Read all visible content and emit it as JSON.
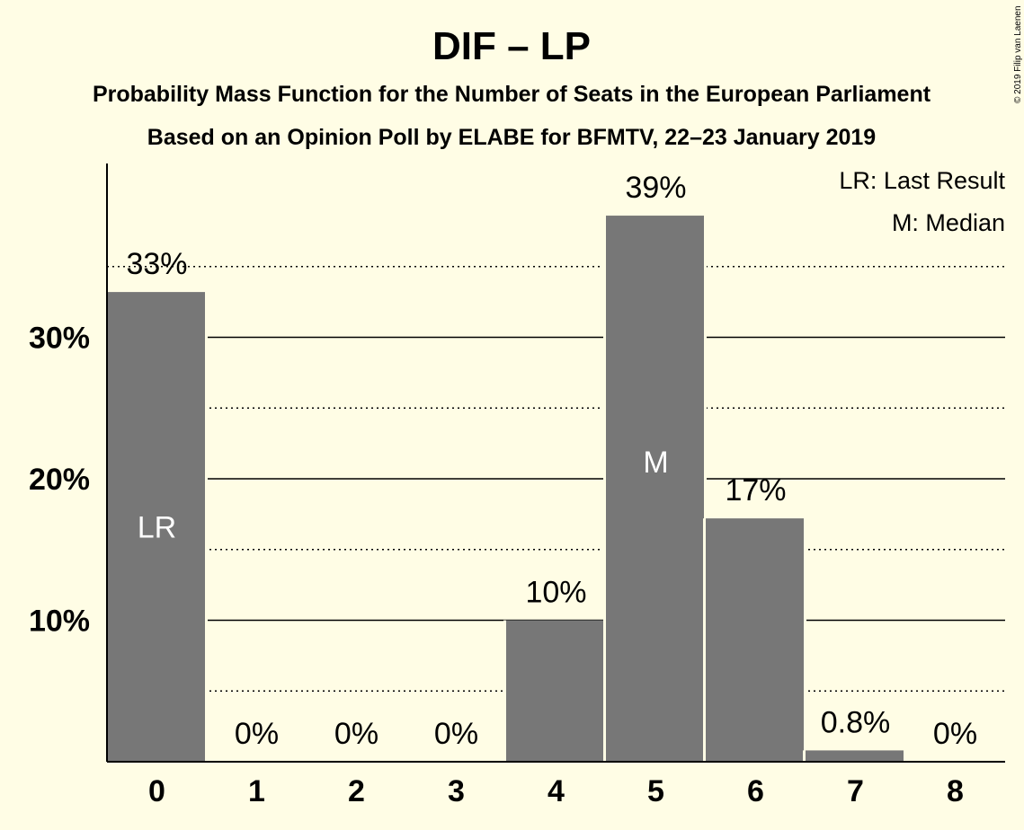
{
  "chart_data": {
    "type": "bar",
    "title": "DIF – LP",
    "subtitle_lines": [
      "Probability Mass Function for the Number of Seats in the European Parliament",
      "Based on an Opinion Poll by ELABE for BFMTV, 22–23 January 2019"
    ],
    "copyright": "© 2019 Filip van Laenen",
    "categories": [
      "0",
      "1",
      "2",
      "3",
      "4",
      "5",
      "6",
      "7",
      "8"
    ],
    "values": [
      33.2,
      0,
      0,
      0,
      10,
      38.6,
      17.2,
      0.8,
      0
    ],
    "data_labels": [
      "33%",
      "0%",
      "0%",
      "0%",
      "10%",
      "39%",
      "17%",
      "0.8%",
      "0%"
    ],
    "last_result_index": 0,
    "median_index": 5,
    "last_result_marker": "LR",
    "median_marker": "M",
    "legend": {
      "placement": "top-right",
      "entries": [
        "LR: Last Result",
        "M: Median"
      ]
    },
    "yticks": [
      10,
      20,
      30
    ],
    "ytick_labels": [
      "10%",
      "20%",
      "30%"
    ],
    "minor_gridlines": [
      5,
      15,
      25,
      35
    ],
    "ylim": [
      0,
      42
    ],
    "bar_color": "#777777",
    "background_color": "#fffde5"
  }
}
